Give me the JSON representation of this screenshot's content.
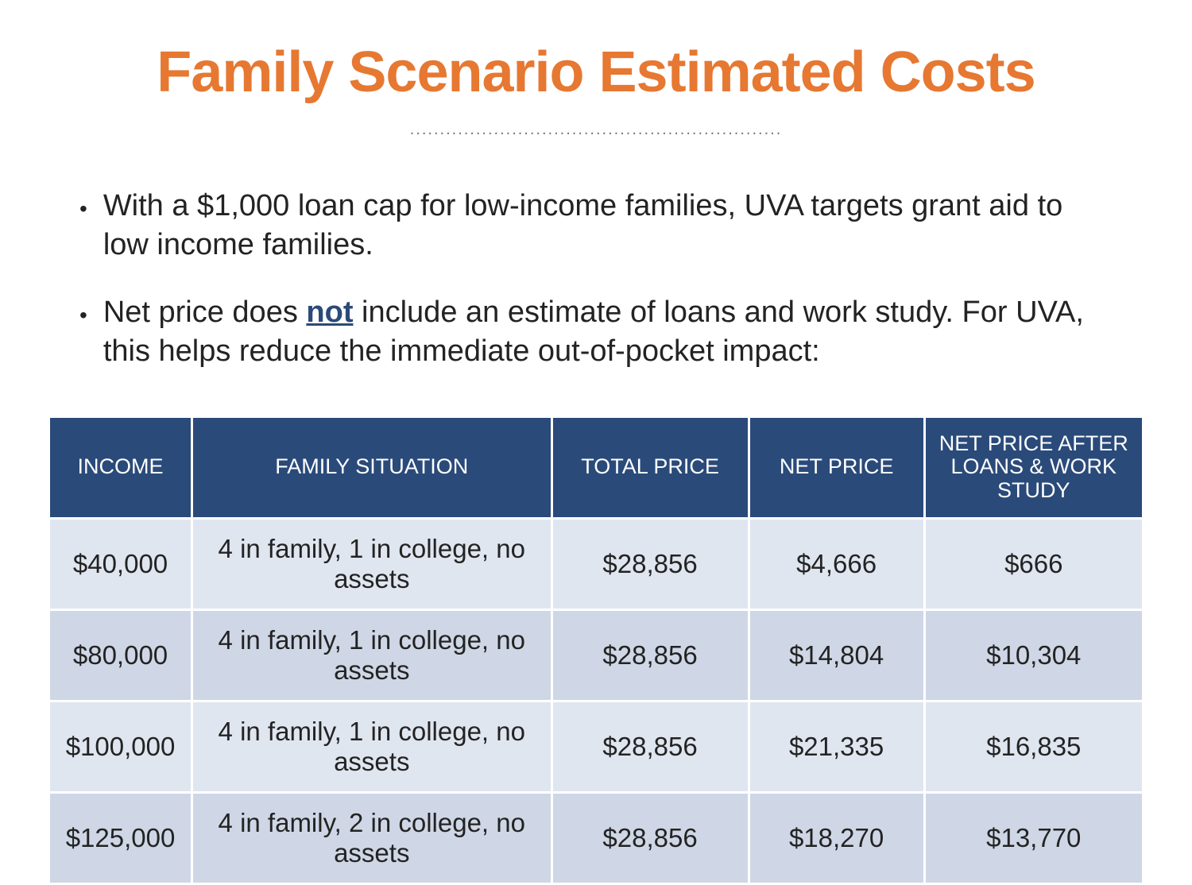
{
  "title": "Family Scenario Estimated Costs",
  "title_color": "#e67832",
  "dotted_separator_color": "#6a7a8a",
  "bullets": [
    {
      "text_before": "With a $1,000 loan cap for low-income families, UVA targets grant aid to low income families.",
      "emphasized": "",
      "text_after": ""
    },
    {
      "text_before": "Net price does ",
      "emphasized": "not",
      "text_after": " include an estimate of loans and work study. For UVA, this helps reduce the immediate out-of-pocket impact:"
    }
  ],
  "emphasized_color": "#2a4a7a",
  "table": {
    "header_bg": "#2a4a7a",
    "header_color": "#ffffff",
    "row_odd_bg": "#e0e6f0",
    "row_even_bg": "#cfd7e6",
    "columns": [
      {
        "label": "INCOME",
        "class": "col-income"
      },
      {
        "label": "FAMILY SITUATION",
        "class": "col-family"
      },
      {
        "label": "TOTAL PRICE",
        "class": "col-total"
      },
      {
        "label": "NET PRICE",
        "class": "col-net"
      },
      {
        "label": "NET PRICE AFTER LOANS & WORK STUDY",
        "class": "col-after"
      }
    ],
    "rows": [
      [
        "$40,000",
        "4 in family, 1 in college, no assets",
        "$28,856",
        "$4,666",
        "$666"
      ],
      [
        "$80,000",
        "4 in family, 1 in college, no assets",
        "$28,856",
        "$14,804",
        "$10,304"
      ],
      [
        "$100,000",
        "4 in family, 1 in college, no assets",
        "$28,856",
        "$21,335",
        "$16,835"
      ],
      [
        "$125,000",
        "4 in family, 2 in college, no assets",
        "$28,856",
        "$18,270",
        "$13,770"
      ]
    ]
  }
}
